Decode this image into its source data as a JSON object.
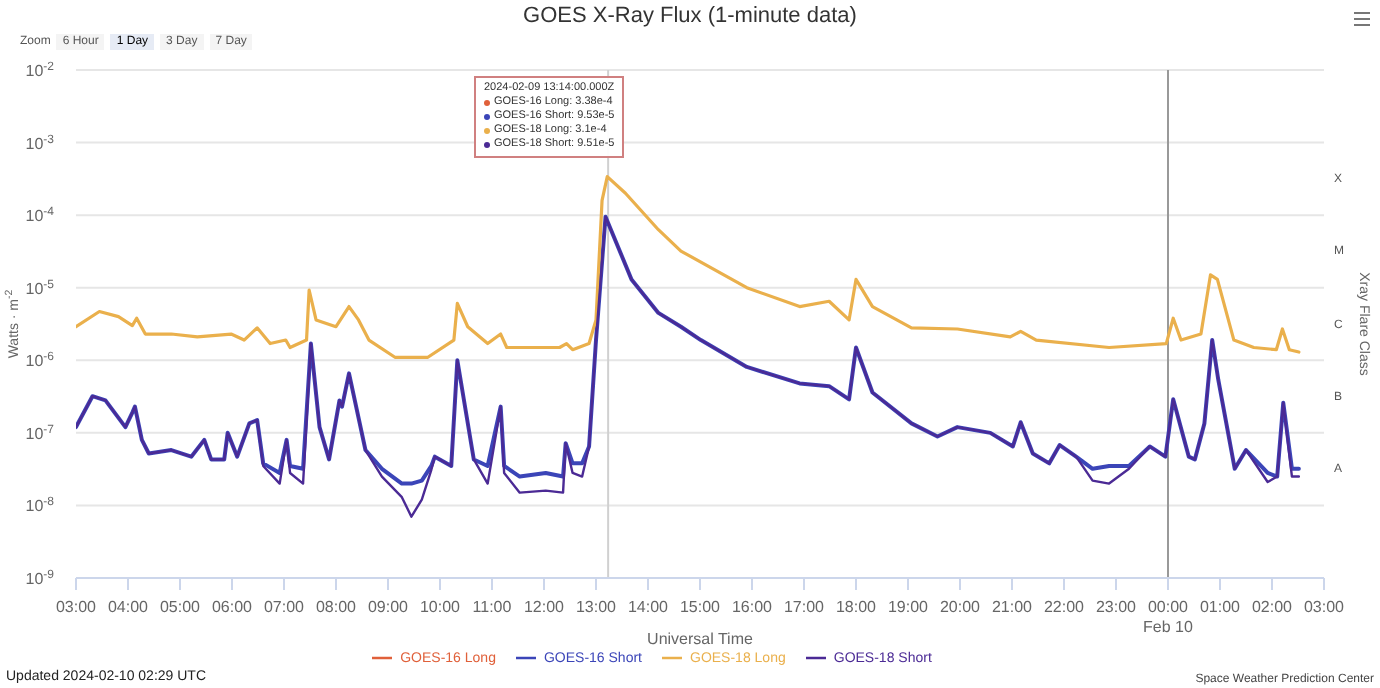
{
  "chart_data": {
    "type": "line",
    "title": "GOES X-Ray Flux (1-minute data)",
    "xlabel": "Universal Time",
    "ylabel": "Watts · m$^{-2}$",
    "y2label": "Xray Flare Class",
    "xlim": [
      "2024-02-09T03:00",
      "2024-02-10T03:00"
    ],
    "xticks": [
      {
        "value": "2024-02-09T03:00",
        "label": "03:00"
      },
      {
        "value": "2024-02-09T04:00",
        "label": "04:00"
      },
      {
        "value": "2024-02-09T05:00",
        "label": "05:00"
      },
      {
        "value": "2024-02-09T06:00",
        "label": "06:00"
      },
      {
        "value": "2024-02-09T07:00",
        "label": "07:00"
      },
      {
        "value": "2024-02-09T08:00",
        "label": "08:00"
      },
      {
        "value": "2024-02-09T09:00",
        "label": "09:00"
      },
      {
        "value": "2024-02-09T10:00",
        "label": "10:00"
      },
      {
        "value": "2024-02-09T11:00",
        "label": "11:00"
      },
      {
        "value": "2024-02-09T12:00",
        "label": "12:00"
      },
      {
        "value": "2024-02-09T13:00",
        "label": "13:00"
      },
      {
        "value": "2024-02-09T14:00",
        "label": "14:00"
      },
      {
        "value": "2024-02-09T15:00",
        "label": "15:00"
      },
      {
        "value": "2024-02-09T16:00",
        "label": "16:00"
      },
      {
        "value": "2024-02-09T17:00",
        "label": "17:00"
      },
      {
        "value": "2024-02-09T18:00",
        "label": "18:00"
      },
      {
        "value": "2024-02-09T19:00",
        "label": "19:00"
      },
      {
        "value": "2024-02-09T20:00",
        "label": "20:00"
      },
      {
        "value": "2024-02-09T21:00",
        "label": "21:00"
      },
      {
        "value": "2024-02-09T22:00",
        "label": "22:00"
      },
      {
        "value": "2024-02-09T23:00",
        "label": "23:00"
      },
      {
        "value": "2024-02-10T00:00",
        "label": "00:00\nFeb 10"
      },
      {
        "value": "2024-02-10T01:00",
        "label": "01:00"
      },
      {
        "value": "2024-02-10T02:00",
        "label": "02:00"
      },
      {
        "value": "2024-02-10T03:00",
        "label": "03:00"
      }
    ],
    "ylim": [
      1e-09,
      0.01
    ],
    "log": "y",
    "yticks": [
      {
        "value": 1e-09,
        "label": "10$^{-9}$"
      },
      {
        "value": 1e-08,
        "label": "10$^{-8}$"
      },
      {
        "value": 1e-07,
        "label": "10$^{-7}$"
      },
      {
        "value": 1e-06,
        "label": "10$^{-6}$"
      },
      {
        "value": 1e-05,
        "label": "10$^{-5}$"
      },
      {
        "value": 0.0001,
        "label": "10$^{-4}$"
      },
      {
        "value": 0.001,
        "label": "10$^{-3}$"
      },
      {
        "value": 0.01,
        "label": "10$^{-2}$"
      }
    ],
    "grid": "y",
    "legend": "bottom",
    "marker": "none",
    "line_style": "solid",
    "ref_lines": [
      {
        "axis": "x",
        "value": "2024-02-09T13:14",
        "label": null,
        "color": "#d0d0d0"
      },
      {
        "axis": "x",
        "value": "2024-02-10T00:00",
        "label": null,
        "color": "#999999"
      }
    ],
    "annotations": [
      "Zoom",
      "6 Hour",
      "1 Day",
      "3 Day",
      "7 Day",
      "2024-02-09 13:14:00.000Z",
      "GOES-16 Long: 3.38e-4",
      "GOES-16 Short: 9.53e-5",
      "GOES-18 Long: 3.1e-4",
      "GOES-18 Short: 9.51e-5",
      "Updated 2024-02-10 02:29 UTC",
      "Space Weather Prediction Center",
      "X",
      "M",
      "C",
      "B",
      "A"
    ],
    "series": [
      {
        "name": "GOES-16 Long",
        "color": "#e0603a"
      },
      {
        "name": "GOES-16 Short",
        "color": "#3b45b8",
        "x": [
          "2024-02-09T03:00",
          "2024-02-09T03:19",
          "2024-02-09T03:34",
          "2024-02-09T03:57",
          "2024-02-09T04:05",
          "2024-02-09T04:08",
          "2024-02-09T04:16",
          "2024-02-09T04:24",
          "2024-02-09T04:50",
          "2024-02-09T05:13",
          "2024-02-09T05:28",
          "2024-02-09T05:36",
          "2024-02-09T05:51",
          "2024-02-09T05:55",
          "2024-02-09T06:06",
          "2024-02-09T06:20",
          "2024-02-09T06:29",
          "2024-02-09T06:36",
          "2024-02-09T06:55",
          "2024-02-09T07:03",
          "2024-02-09T07:07",
          "2024-02-09T07:22",
          "2024-02-09T07:31",
          "2024-02-09T07:41",
          "2024-02-09T07:52",
          "2024-02-09T08:04",
          "2024-02-09T08:07",
          "2024-02-09T08:15",
          "2024-02-09T08:34",
          "2024-02-09T08:53",
          "2024-02-09T09:16",
          "2024-02-09T09:27",
          "2024-02-09T09:39",
          "2024-02-09T09:50",
          "2024-02-09T09:54",
          "2024-02-09T10:13",
          "2024-02-09T10:20",
          "2024-02-09T10:39",
          "2024-02-09T10:55",
          "2024-02-09T11:10",
          "2024-02-09T11:14",
          "2024-02-09T11:32",
          "2024-02-09T12:02",
          "2024-02-09T12:22",
          "2024-02-09T12:25",
          "2024-02-09T12:33",
          "2024-02-09T12:44",
          "2024-02-09T12:52",
          "2024-02-09T13:00",
          "2024-02-09T13:11",
          "2024-02-09T13:41",
          "2024-02-09T14:12",
          "2024-02-09T14:38",
          "2024-02-09T15:01",
          "2024-02-09T15:54",
          "2024-02-09T16:55",
          "2024-02-09T17:29",
          "2024-02-09T17:52",
          "2024-02-09T18:00",
          "2024-02-09T18:19",
          "2024-02-09T19:04",
          "2024-02-09T19:34",
          "2024-02-09T19:57",
          "2024-02-09T20:35",
          "2024-02-09T21:01",
          "2024-02-09T21:10",
          "2024-02-09T21:24",
          "2024-02-09T21:43",
          "2024-02-09T21:55",
          "2024-02-09T22:14",
          "2024-02-09T22:33",
          "2024-02-09T22:52",
          "2024-02-09T23:15",
          "2024-02-09T23:39",
          "2024-02-09T23:57",
          "2024-02-10T00:06",
          "2024-02-10T00:24",
          "2024-02-10T00:31",
          "2024-02-10T00:42",
          "2024-02-10T00:51",
          "2024-02-10T00:58",
          "2024-02-10T01:17",
          "2024-02-10T01:30",
          "2024-02-10T01:55",
          "2024-02-10T02:06",
          "2024-02-10T02:13",
          "2024-02-10T02:23",
          "2024-02-10T02:31"
        ],
        "values": [
          1.2e-07,
          3.2e-07,
          2.8e-07,
          1.2e-07,
          1.9e-07,
          2.3e-07,
          8e-08,
          5.2e-08,
          5.8e-08,
          4.7e-08,
          8e-08,
          4.3e-08,
          4.3e-08,
          1e-07,
          4.7e-08,
          1.35e-07,
          1.5e-07,
          3.8e-08,
          2.8e-08,
          8e-08,
          3.5e-08,
          3.2e-08,
          1.7e-06,
          1.2e-07,
          4.3e-08,
          2.8e-07,
          2.3e-07,
          6.6e-07,
          5.8e-08,
          3.2e-08,
          2e-08,
          2e-08,
          2.2e-08,
          3.5e-08,
          4.7e-08,
          3.5e-08,
          1e-06,
          4.3e-08,
          3.5e-08,
          2.3e-07,
          3.5e-08,
          2.5e-08,
          2.8e-08,
          2.5e-08,
          7.2e-08,
          3.8e-08,
          3.8e-08,
          6.5e-08,
          1.9e-06,
          9.5e-05,
          1.3e-05,
          4.5e-06,
          2.9e-06,
          1.9e-06,
          8.1e-07,
          4.8e-07,
          4.4e-07,
          2.9e-07,
          1.5e-06,
          3.6e-07,
          1.35e-07,
          8.9e-08,
          1.2e-07,
          1e-07,
          6.5e-08,
          1.4e-07,
          5.2e-08,
          3.8e-08,
          6.8e-08,
          4.7e-08,
          3.2e-08,
          3.5e-08,
          3.5e-08,
          6.5e-08,
          4.7e-08,
          2.9e-07,
          4.7e-08,
          4.3e-08,
          1.35e-07,
          1.9e-06,
          5.4e-07,
          3.2e-08,
          5.8e-08,
          2.8e-08,
          2.5e-08,
          2.6e-07,
          3.2e-08,
          3.2e-08
        ]
      },
      {
        "name": "GOES-18 Long",
        "color": "#eab04c",
        "x": [
          "2024-02-09T03:00",
          "2024-02-09T03:27",
          "2024-02-09T03:49",
          "2024-02-09T04:05",
          "2024-02-09T04:10",
          "2024-02-09T04:20",
          "2024-02-09T04:50",
          "2024-02-09T05:20",
          "2024-02-09T05:59",
          "2024-02-09T06:14",
          "2024-02-09T06:29",
          "2024-02-09T06:44",
          "2024-02-09T07:02",
          "2024-02-09T07:07",
          "2024-02-09T07:26",
          "2024-02-09T07:29",
          "2024-02-09T07:37",
          "2024-02-09T08:00",
          "2024-02-09T08:15",
          "2024-02-09T08:26",
          "2024-02-09T08:38",
          "2024-02-09T09:08",
          "2024-02-09T09:46",
          "2024-02-09T10:16",
          "2024-02-09T10:20",
          "2024-02-09T10:32",
          "2024-02-09T10:55",
          "2024-02-09T11:10",
          "2024-02-09T11:17",
          "2024-02-09T12:18",
          "2024-02-09T12:26",
          "2024-02-09T12:33",
          "2024-02-09T12:52",
          "2024-02-09T13:00",
          "2024-02-09T13:07",
          "2024-02-09T13:13",
          "2024-02-09T13:34",
          "2024-02-09T14:12",
          "2024-02-09T14:38",
          "2024-02-09T15:54",
          "2024-02-09T16:55",
          "2024-02-09T17:29",
          "2024-02-09T17:52",
          "2024-02-09T18:00",
          "2024-02-09T18:19",
          "2024-02-09T19:04",
          "2024-02-09T19:57",
          "2024-02-09T20:58",
          "2024-02-09T21:10",
          "2024-02-09T21:28",
          "2024-02-09T22:52",
          "2024-02-09T23:58",
          "2024-02-10T00:06",
          "2024-02-10T00:15",
          "2024-02-10T00:38",
          "2024-02-10T00:49",
          "2024-02-10T00:57",
          "2024-02-10T01:16",
          "2024-02-10T01:39",
          "2024-02-10T02:05",
          "2024-02-10T02:12",
          "2024-02-10T02:20",
          "2024-02-10T02:31"
        ],
        "values": [
          2.9e-06,
          4.7e-06,
          4e-06,
          3e-06,
          3.8e-06,
          2.3e-06,
          2.3e-06,
          2.1e-06,
          2.3e-06,
          1.9e-06,
          2.8e-06,
          1.7e-06,
          1.9e-06,
          1.5e-06,
          1.9e-06,
          9.3e-06,
          3.6e-06,
          2.9e-06,
          5.5e-06,
          3.6e-06,
          1.9e-06,
          1.1e-06,
          1.1e-06,
          1.9e-06,
          6.1e-06,
          2.9e-06,
          1.7e-06,
          2.3e-06,
          1.5e-06,
          1.5e-06,
          1.7e-06,
          1.4e-06,
          1.7e-06,
          3.6e-06,
          0.00016,
          0.00034,
          0.0002,
          6.3e-05,
          3.2e-05,
          1e-05,
          5.5e-06,
          6.5e-06,
          3.6e-06,
          1.3e-05,
          5.5e-06,
          2.8e-06,
          2.7e-06,
          2.1e-06,
          2.5e-06,
          1.9e-06,
          1.5e-06,
          1.7e-06,
          3.8e-06,
          1.9e-06,
          2.3e-06,
          1.5e-05,
          1.3e-05,
          1.9e-06,
          1.5e-06,
          1.4e-06,
          2.7e-06,
          1.4e-06,
          1.3e-06
        ]
      },
      {
        "name": "GOES-18 Short",
        "color": "#4b2a95",
        "x": [
          "2024-02-09T03:00",
          "2024-02-09T03:19",
          "2024-02-09T03:34",
          "2024-02-09T03:57",
          "2024-02-09T04:05",
          "2024-02-09T04:08",
          "2024-02-09T04:16",
          "2024-02-09T04:24",
          "2024-02-09T04:50",
          "2024-02-09T05:13",
          "2024-02-09T05:28",
          "2024-02-09T05:36",
          "2024-02-09T05:51",
          "2024-02-09T05:55",
          "2024-02-09T06:06",
          "2024-02-09T06:20",
          "2024-02-09T06:29",
          "2024-02-09T06:36",
          "2024-02-09T06:55",
          "2024-02-09T07:03",
          "2024-02-09T07:07",
          "2024-02-09T07:22",
          "2024-02-09T07:31",
          "2024-02-09T07:41",
          "2024-02-09T07:52",
          "2024-02-09T08:04",
          "2024-02-09T08:07",
          "2024-02-09T08:15",
          "2024-02-09T08:34",
          "2024-02-09T08:53",
          "2024-02-09T09:16",
          "2024-02-09T09:27",
          "2024-02-09T09:39",
          "2024-02-09T09:50",
          "2024-02-09T09:54",
          "2024-02-09T10:13",
          "2024-02-09T10:20",
          "2024-02-09T10:39",
          "2024-02-09T10:55",
          "2024-02-09T11:10",
          "2024-02-09T11:14",
          "2024-02-09T11:32",
          "2024-02-09T12:02",
          "2024-02-09T12:22",
          "2024-02-09T12:25",
          "2024-02-09T12:33",
          "2024-02-09T12:44",
          "2024-02-09T12:52",
          "2024-02-09T13:00",
          "2024-02-09T13:11",
          "2024-02-09T13:41",
          "2024-02-09T14:12",
          "2024-02-09T14:38",
          "2024-02-09T15:01",
          "2024-02-09T15:54",
          "2024-02-09T16:55",
          "2024-02-09T17:29",
          "2024-02-09T17:52",
          "2024-02-09T18:00",
          "2024-02-09T18:19",
          "2024-02-09T19:04",
          "2024-02-09T19:34",
          "2024-02-09T19:57",
          "2024-02-09T20:35",
          "2024-02-09T21:01",
          "2024-02-09T21:10",
          "2024-02-09T21:24",
          "2024-02-09T21:43",
          "2024-02-09T21:55",
          "2024-02-09T22:14",
          "2024-02-09T22:33",
          "2024-02-09T22:52",
          "2024-02-09T23:15",
          "2024-02-09T23:39",
          "2024-02-09T23:57",
          "2024-02-10T00:06",
          "2024-02-10T00:24",
          "2024-02-10T00:31",
          "2024-02-10T00:42",
          "2024-02-10T00:51",
          "2024-02-10T00:58",
          "2024-02-10T01:17",
          "2024-02-10T01:30",
          "2024-02-10T01:55",
          "2024-02-10T02:06",
          "2024-02-10T02:13",
          "2024-02-10T02:23",
          "2024-02-10T02:31"
        ],
        "values": [
          1.2e-07,
          3.2e-07,
          2.8e-07,
          1.2e-07,
          1.9e-07,
          2.3e-07,
          8e-08,
          5.2e-08,
          5.8e-08,
          4.7e-08,
          8e-08,
          4.3e-08,
          4.3e-08,
          1e-07,
          4.7e-08,
          1.35e-07,
          1.5e-07,
          3.5e-08,
          2e-08,
          8e-08,
          2.8e-08,
          2e-08,
          1.7e-06,
          1.2e-07,
          4.3e-08,
          2.8e-07,
          2.3e-07,
          6.6e-07,
          5.8e-08,
          2.5e-08,
          1.3e-08,
          7e-09,
          1.2e-08,
          3.1e-08,
          4.7e-08,
          3.5e-08,
          1e-06,
          4.3e-08,
          2e-08,
          2.3e-07,
          2.8e-08,
          1.5e-08,
          1.6e-08,
          1.5e-08,
          7.2e-08,
          2.8e-08,
          2.5e-08,
          6.5e-08,
          1.9e-06,
          9.5e-05,
          1.3e-05,
          4.5e-06,
          2.9e-06,
          1.9e-06,
          8.1e-07,
          4.8e-07,
          4.4e-07,
          2.9e-07,
          1.5e-06,
          3.6e-07,
          1.35e-07,
          8.9e-08,
          1.2e-07,
          1e-07,
          6.5e-08,
          1.4e-07,
          5.2e-08,
          3.8e-08,
          6.8e-08,
          4.7e-08,
          2.2e-08,
          2e-08,
          3.2e-08,
          6.5e-08,
          4.7e-08,
          2.9e-07,
          4.7e-08,
          4.3e-08,
          1.35e-07,
          1.9e-06,
          5.4e-07,
          3.2e-08,
          5.8e-08,
          2.1e-08,
          2.5e-08,
          2.6e-07,
          2.5e-08,
          2.5e-08
        ]
      }
    ]
  }
}
